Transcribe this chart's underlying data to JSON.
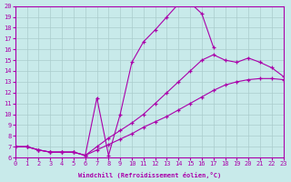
{
  "xlabel": "Windchill (Refroidissement éolien,°C)",
  "background_color": "#c8eaea",
  "grid_color": "#aacccc",
  "line_color": "#aa00aa",
  "xlim": [
    0,
    23
  ],
  "ylim": [
    6,
    20
  ],
  "xticks": [
    0,
    1,
    2,
    3,
    4,
    5,
    6,
    7,
    8,
    9,
    10,
    11,
    12,
    13,
    14,
    15,
    16,
    17,
    18,
    19,
    20,
    21,
    22,
    23
  ],
  "yticks": [
    6,
    7,
    8,
    9,
    10,
    11,
    12,
    13,
    14,
    15,
    16,
    17,
    18,
    19,
    20
  ],
  "line1_x": [
    0,
    1,
    2,
    3,
    4,
    5,
    6,
    7,
    8,
    9,
    10,
    11,
    12,
    13,
    14,
    15,
    16,
    17
  ],
  "line1_y": [
    7.0,
    7.0,
    6.7,
    6.5,
    6.5,
    6.5,
    6.2,
    11.5,
    6.2,
    10.0,
    14.8,
    16.7,
    17.8,
    19.0,
    20.2,
    20.3,
    19.3,
    16.2
  ],
  "line2_x": [
    0,
    1,
    2,
    3,
    4,
    5,
    6,
    7,
    8,
    9,
    10,
    11,
    12,
    13,
    14,
    15,
    16,
    17,
    18,
    19,
    20,
    21,
    22,
    23
  ],
  "line2_y": [
    7.0,
    7.0,
    6.7,
    6.5,
    6.5,
    6.5,
    6.2,
    7.0,
    7.8,
    8.5,
    9.2,
    10.0,
    11.0,
    12.0,
    13.0,
    14.0,
    15.0,
    15.5,
    15.0,
    14.8,
    15.2,
    14.8,
    14.3,
    13.5
  ],
  "line3_x": [
    0,
    1,
    2,
    3,
    4,
    5,
    6,
    7,
    8,
    9,
    10,
    11,
    12,
    13,
    14,
    15,
    16,
    17,
    18,
    19,
    20,
    21,
    22,
    23
  ],
  "line3_y": [
    7.0,
    7.0,
    6.7,
    6.5,
    6.5,
    6.5,
    6.2,
    6.7,
    7.2,
    7.7,
    8.2,
    8.8,
    9.3,
    9.8,
    10.4,
    11.0,
    11.6,
    12.2,
    12.7,
    13.0,
    13.2,
    13.3,
    13.3,
    13.2
  ]
}
